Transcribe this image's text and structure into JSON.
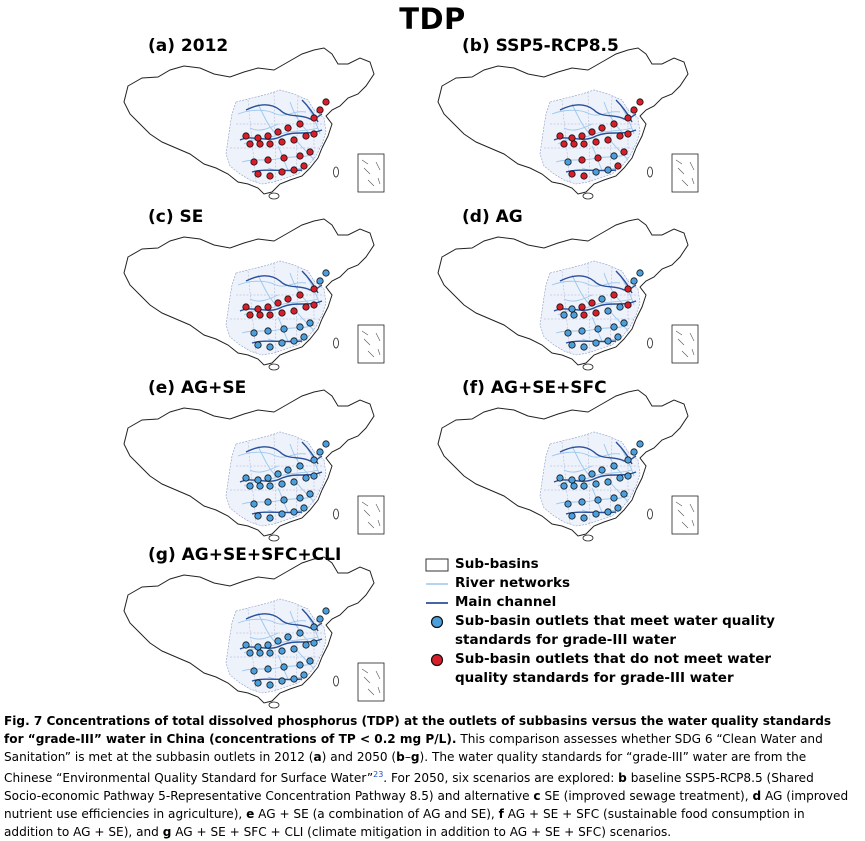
{
  "title": "TDP",
  "colors": {
    "meet": "#4a9fdc",
    "not_meet": "#d61f2a",
    "river": "#9cc7ee",
    "main_channel": "#2a4f9a",
    "subbasin_fill": "#eef2fb"
  },
  "panels": [
    {
      "id": "a",
      "label": "(a) 2012",
      "status": [
        "N",
        "N",
        "N",
        "N",
        "N",
        "N",
        "N",
        "N",
        "N",
        "N",
        "N",
        "N",
        "N",
        "N",
        "N",
        "N",
        "N",
        "N",
        "N",
        "N",
        "N",
        "N",
        "N",
        "N",
        "N",
        "N"
      ]
    },
    {
      "id": "b",
      "label": "(b) SSP5-RCP8.5",
      "status": [
        "N",
        "N",
        "N",
        "N",
        "N",
        "N",
        "N",
        "N",
        "N",
        "N",
        "N",
        "N",
        "N",
        "N",
        "N",
        "N",
        "N",
        "Y",
        "N",
        "N",
        "Y",
        "Y",
        "Y",
        "N",
        "N",
        "N"
      ]
    },
    {
      "id": "c",
      "label": "(c) SE",
      "status": [
        "Y",
        "Y",
        "N",
        "N",
        "N",
        "N",
        "N",
        "N",
        "N",
        "N",
        "N",
        "N",
        "N",
        "N",
        "N",
        "N",
        "Y",
        "Y",
        "Y",
        "Y",
        "Y",
        "Y",
        "Y",
        "Y",
        "Y",
        "Y"
      ]
    },
    {
      "id": "d",
      "label": "(d) AG",
      "status": [
        "Y",
        "Y",
        "N",
        "N",
        "Y",
        "N",
        "N",
        "Y",
        "N",
        "N",
        "Y",
        "Y",
        "N",
        "N",
        "Y",
        "Y",
        "Y",
        "Y",
        "Y",
        "Y",
        "Y",
        "Y",
        "Y",
        "Y",
        "Y",
        "Y"
      ]
    },
    {
      "id": "e",
      "label": "(e) AG+SE",
      "status": [
        "Y",
        "Y",
        "Y",
        "Y",
        "Y",
        "Y",
        "Y",
        "Y",
        "Y",
        "Y",
        "Y",
        "Y",
        "Y",
        "Y",
        "Y",
        "Y",
        "Y",
        "Y",
        "Y",
        "Y",
        "Y",
        "Y",
        "Y",
        "Y",
        "Y",
        "Y"
      ]
    },
    {
      "id": "f",
      "label": "(f) AG+SE+SFC",
      "status": [
        "Y",
        "Y",
        "Y",
        "Y",
        "Y",
        "Y",
        "Y",
        "Y",
        "Y",
        "Y",
        "Y",
        "Y",
        "Y",
        "Y",
        "Y",
        "Y",
        "Y",
        "Y",
        "Y",
        "Y",
        "Y",
        "Y",
        "Y",
        "Y",
        "Y",
        "Y"
      ]
    },
    {
      "id": "g",
      "label": "(g) AG+SE+SFC+CLI",
      "status": [
        "Y",
        "Y",
        "Y",
        "Y",
        "Y",
        "Y",
        "Y",
        "Y",
        "Y",
        "Y",
        "Y",
        "Y",
        "Y",
        "Y",
        "Y",
        "Y",
        "Y",
        "Y",
        "Y",
        "Y",
        "Y",
        "Y",
        "Y",
        "Y",
        "Y",
        "Y"
      ]
    }
  ],
  "legend": {
    "subbasins": "Sub-basins",
    "rivers": "River networks",
    "main_channel": "Main channel",
    "meet_line1": "Sub-basin outlets that meet water quality",
    "meet_line2": "standards for grade-III water",
    "notmeet_line1": "Sub-basin outlets that do not meet water",
    "notmeet_line2": "quality standards for grade-III water"
  },
  "caption": {
    "bold_lead": "Fig. 7 Concentrations of total dissolved phosphorus (TDP) at the outlets of subbasins versus the water quality standards for “grade-III” water in China (concentrations of TP < 0.2 mg P/L).",
    "s1": " This comparison assesses whether SDG 6 “Clean Water and Sanitation” is met at the subbasin outlets in 2012 (",
    "a": "a",
    "s2": ") and 2050 (",
    "bg": "b",
    "dash": "–",
    "g": "g",
    "s3": "). The water quality standards for “grade-III” water are from the Chinese “Environmental Quality Standard for Surface Water”",
    "ref": "23",
    "s4": ". For 2050, six scenarios are explored: ",
    "b": "b",
    "s5": " baseline SSP5-RCP8.5 (Shared Socio-economic Pathway 5-Representative Concentration Pathway 8.5) and alternative ",
    "c": "c",
    "s6": " SE (improved sewage treatment), ",
    "d": "d",
    "s7": " AG (improved nutrient use efficiencies in agriculture), ",
    "e": "e",
    "s8": " AG + SE (a combination of AG and SE), ",
    "f": "f",
    "s9": " AG + SE + SFC (sustainable food consumption in addition to AG + SE), and ",
    "g2": "g",
    "s10": " AG + SE + SFC + CLI (climate mitigation in addition to AG + SE + SFC) scenarios."
  }
}
